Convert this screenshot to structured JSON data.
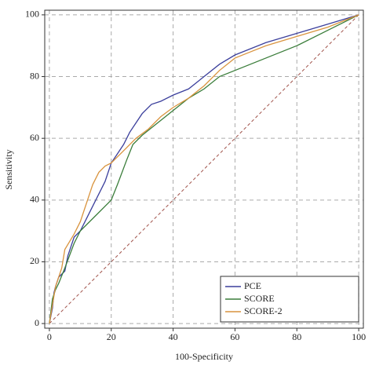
{
  "chart_data": {
    "type": "line",
    "x_label": "100-Specificity",
    "y_label": "Sensitivity",
    "xlim": [
      -1.5,
      101.5
    ],
    "ylim": [
      -1.5,
      101.5
    ],
    "xticks": [
      0,
      20,
      40,
      60,
      80,
      100
    ],
    "yticks": [
      0,
      20,
      40,
      60,
      80,
      100
    ],
    "grid": true,
    "legend": "lower right",
    "reference_color": "#a0524a",
    "series": [
      {
        "name": "PCE",
        "color": "#3b3f9c",
        "x": [
          0,
          1,
          1.5,
          2,
          3,
          5,
          6,
          8,
          10,
          12,
          14,
          16,
          18,
          20,
          22,
          24,
          26,
          28,
          30,
          33,
          36,
          40,
          45,
          50,
          55,
          60,
          65,
          70,
          80,
          90,
          100
        ],
        "values": [
          0,
          5,
          10,
          12,
          15,
          17,
          22,
          28,
          30,
          34,
          38,
          42,
          46,
          52,
          55,
          58,
          62,
          65,
          68,
          71,
          72,
          74,
          76,
          80,
          84,
          87,
          89,
          91,
          94,
          97,
          100
        ]
      },
      {
        "name": "SCORE",
        "color": "#3a7d3a",
        "x": [
          0,
          1,
          2,
          3,
          5,
          8,
          10,
          15,
          20,
          22,
          25,
          27,
          30,
          35,
          40,
          45,
          50,
          55,
          60,
          70,
          80,
          90,
          100
        ],
        "values": [
          0,
          8,
          11,
          13,
          18,
          26,
          30,
          35,
          40,
          45,
          53,
          58,
          61,
          65,
          69,
          73,
          76,
          80,
          82,
          86,
          90,
          95,
          100
        ]
      },
      {
        "name": "SCORE-2",
        "color": "#d9943f",
        "x": [
          0,
          1,
          2,
          3,
          4,
          5,
          8,
          10,
          12,
          14,
          16,
          18,
          20,
          24,
          28,
          32,
          36,
          40,
          45,
          50,
          55,
          60,
          65,
          70,
          80,
          90,
          100
        ],
        "values": [
          0,
          6,
          12,
          15,
          18,
          24,
          29,
          33,
          39,
          45,
          49,
          51,
          52,
          56,
          60,
          63,
          67,
          70,
          73,
          77,
          82,
          86,
          88,
          90,
          93,
          96,
          100
        ]
      }
    ]
  }
}
